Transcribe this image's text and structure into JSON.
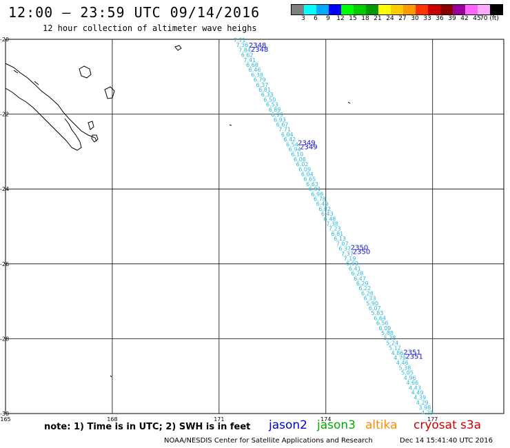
{
  "title": "12:00 – 23:59 UTC 09/14/2016",
  "subtitle": "12 hour collection of altimeter wave heighs",
  "legend": {
    "colors": [
      "#7f7f7f",
      "#00ffff",
      "#00aaff",
      "#0000ff",
      "#00ff00",
      "#00cc00",
      "#009900",
      "#ffff00",
      "#ffcc00",
      "#ff9900",
      "#ff3300",
      "#cc0000",
      "#880000",
      "#990099",
      "#ff66ff",
      "#ffaaff",
      "#000000"
    ],
    "labels": [
      "3",
      "6",
      "9",
      "12",
      "15",
      "18",
      "21",
      "24",
      "27",
      "30",
      "33",
      "36",
      "39",
      "42",
      "45",
      "70 (ft)"
    ]
  },
  "axes": {
    "lat_labels": [
      "-20",
      "-22",
      "-24",
      "-26",
      "-28",
      "-30"
    ],
    "lon_labels": [
      "165",
      "168",
      "171",
      "174",
      "177"
    ]
  },
  "note": "note: 1) Time is in UTC; 2) SWH is in feet",
  "satellites": [
    {
      "name": "jason2",
      "color": "#0000cc"
    },
    {
      "name": "jason3",
      "color": "#00aa00"
    },
    {
      "name": "altika",
      "color": "#ff8800"
    },
    {
      "name": "cryosat",
      "color": "#cc0000"
    },
    {
      "name": "s3a",
      "color": "#cc0000"
    }
  ],
  "footer_left": "NOAA/NESDIS Center for Satellite Applications and Research",
  "footer_right": "Dec 14 15:41:40 UTC 2016",
  "track": {
    "satellite": "jason2",
    "color": "#27b8d8",
    "pass_color": "#1010d0",
    "pass_labels": [
      {
        "text": "2348",
        "lat": -20.15
      },
      {
        "text": "2349",
        "lat": -22.75
      },
      {
        "text": "2350",
        "lat": -25.55
      },
      {
        "text": "2351",
        "lat": -28.35
      }
    ],
    "swh_values": [
      "7.71",
      "7.36",
      "7.84",
      "6.62",
      "7.41",
      "6.68",
      "6.46",
      "6.38",
      "6.79",
      "6.37",
      "6.81",
      "6.33",
      "6.50",
      "6.53",
      "6.89",
      "6.99",
      "6.93",
      "6.67",
      "7.71",
      "6.04",
      "6.42",
      "6.54",
      "6.94",
      "6.10",
      "6.06",
      "6.02",
      "6.09",
      "6.04",
      "6.65",
      "6.63",
      "6.91",
      "6.98",
      "6.78",
      "6.49",
      "6.82",
      "6.43",
      "6.48",
      "7.38",
      "7.23",
      "6.81",
      "6.13",
      "7.07",
      "6.37",
      "7.37",
      "7.19",
      "6.99",
      "6.41",
      "6.28",
      "6.47",
      "6.29",
      "6.22",
      "6.28",
      "6.33",
      "5.90",
      "6.07",
      "5.83",
      "6.64",
      "6.56",
      "6.09",
      "5.88",
      "5.38",
      "5.24",
      "5.12",
      "4.86",
      "4.79",
      "4.46",
      "5.38",
      "5.05",
      "4.96",
      "4.66",
      "4.43",
      "4.49",
      "4.39",
      "4.29",
      "3.98",
      "4.25"
    ]
  }
}
